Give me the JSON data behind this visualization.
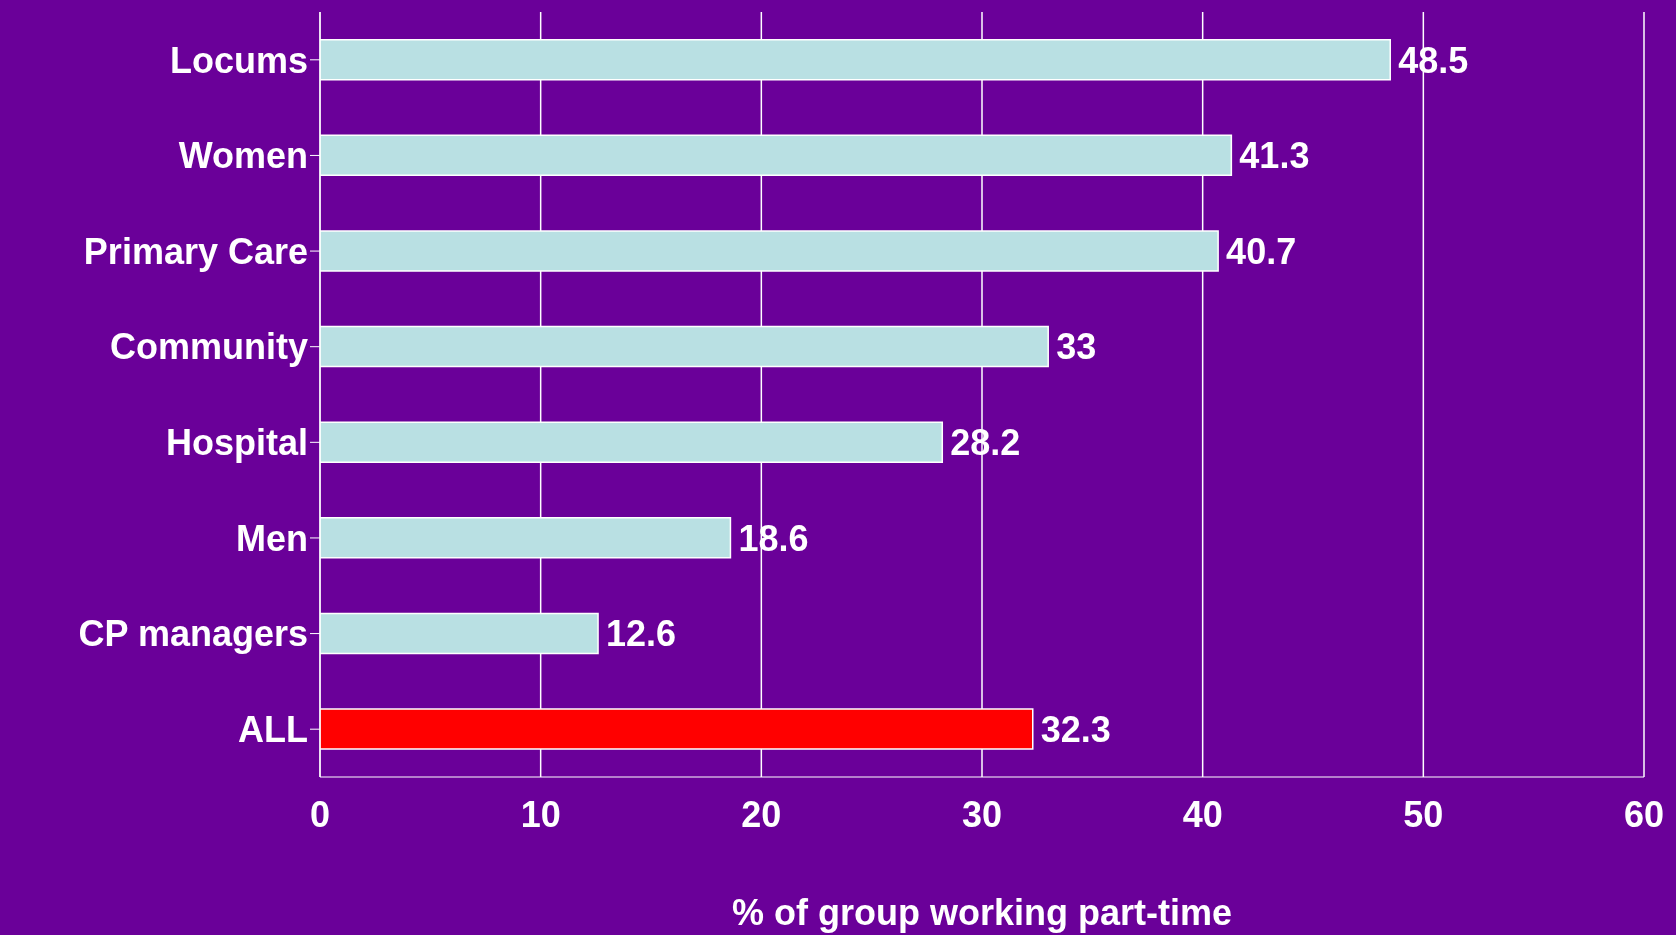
{
  "chart_data": {
    "type": "bar",
    "orientation": "horizontal",
    "xlabel": "% of group working part-time",
    "categories": [
      "Locums",
      "Women",
      "Primary Care",
      "Community",
      "Hospital",
      "Men",
      "CP managers",
      "ALL"
    ],
    "values": [
      48.5,
      41.3,
      40.7,
      33,
      28.2,
      18.6,
      12.6,
      32.3
    ],
    "colors": [
      "#b9e0e3",
      "#b9e0e3",
      "#b9e0e3",
      "#b9e0e3",
      "#b9e0e3",
      "#b9e0e3",
      "#b9e0e3",
      "#ff0000"
    ],
    "xlim": [
      0,
      60
    ],
    "xticks": [
      0,
      10,
      20,
      30,
      40,
      50,
      60
    ],
    "grid": "x",
    "data_labels": true
  }
}
